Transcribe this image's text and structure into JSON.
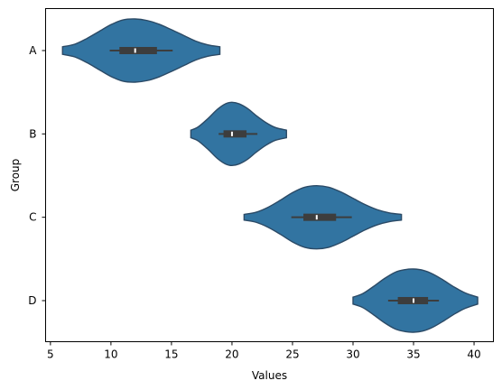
{
  "chart_data": {
    "type": "violin",
    "orientation": "horizontal",
    "xlabel": "Values",
    "ylabel": "Group",
    "xlim": [
      4.6,
      41.6
    ],
    "xticks": [
      5,
      10,
      15,
      20,
      25,
      30,
      35,
      40
    ],
    "categories": [
      "A",
      "B",
      "C",
      "D"
    ],
    "grid": false,
    "colors": {
      "fill": "#3274a1",
      "edge": "#2b4a66",
      "box": "#3d3d3d",
      "median": "#ffffff"
    },
    "violins": [
      {
        "group": "A",
        "min": 6.0,
        "max": 19.0,
        "q1": 10.7,
        "median": 12.0,
        "q3": 13.8,
        "whisker_low": 9.9,
        "whisker_high": 15.1,
        "density": [
          [
            6.0,
            0.12
          ],
          [
            7.0,
            0.2
          ],
          [
            8.0,
            0.38
          ],
          [
            9.0,
            0.6
          ],
          [
            10.0,
            0.82
          ],
          [
            11.0,
            0.97
          ],
          [
            12.0,
            1.0
          ],
          [
            13.0,
            0.95
          ],
          [
            14.0,
            0.83
          ],
          [
            15.0,
            0.66
          ],
          [
            16.0,
            0.48
          ],
          [
            17.0,
            0.3
          ],
          [
            18.0,
            0.18
          ],
          [
            19.0,
            0.12
          ]
        ]
      },
      {
        "group": "B",
        "min": 16.6,
        "max": 24.5,
        "q1": 19.3,
        "median": 20.0,
        "q3": 21.2,
        "whisker_low": 18.9,
        "whisker_high": 22.1,
        "density": [
          [
            16.6,
            0.12
          ],
          [
            17.2,
            0.22
          ],
          [
            18.0,
            0.48
          ],
          [
            18.8,
            0.78
          ],
          [
            19.5,
            0.96
          ],
          [
            20.0,
            1.0
          ],
          [
            20.6,
            0.95
          ],
          [
            21.3,
            0.8
          ],
          [
            22.0,
            0.58
          ],
          [
            22.8,
            0.36
          ],
          [
            23.6,
            0.2
          ],
          [
            24.5,
            0.12
          ]
        ]
      },
      {
        "group": "C",
        "min": 21.0,
        "max": 34.0,
        "q1": 25.9,
        "median": 27.0,
        "q3": 28.6,
        "whisker_low": 24.9,
        "whisker_high": 29.9,
        "density": [
          [
            21.0,
            0.09
          ],
          [
            22.0,
            0.16
          ],
          [
            23.0,
            0.32
          ],
          [
            24.0,
            0.54
          ],
          [
            25.0,
            0.78
          ],
          [
            26.0,
            0.95
          ],
          [
            27.0,
            1.0
          ],
          [
            28.0,
            0.95
          ],
          [
            29.0,
            0.8
          ],
          [
            30.0,
            0.6
          ],
          [
            31.0,
            0.4
          ],
          [
            32.0,
            0.24
          ],
          [
            33.0,
            0.14
          ],
          [
            34.0,
            0.09
          ]
        ]
      },
      {
        "group": "D",
        "min": 30.0,
        "max": 40.3,
        "q1": 33.7,
        "median": 35.0,
        "q3": 36.2,
        "whisker_low": 32.9,
        "whisker_high": 37.1,
        "density": [
          [
            30.0,
            0.11
          ],
          [
            30.8,
            0.22
          ],
          [
            31.7,
            0.45
          ],
          [
            32.6,
            0.7
          ],
          [
            33.5,
            0.9
          ],
          [
            34.3,
            0.98
          ],
          [
            35.0,
            1.0
          ],
          [
            35.8,
            0.96
          ],
          [
            36.6,
            0.84
          ],
          [
            37.5,
            0.64
          ],
          [
            38.4,
            0.42
          ],
          [
            39.3,
            0.24
          ],
          [
            40.3,
            0.11
          ]
        ]
      }
    ]
  }
}
